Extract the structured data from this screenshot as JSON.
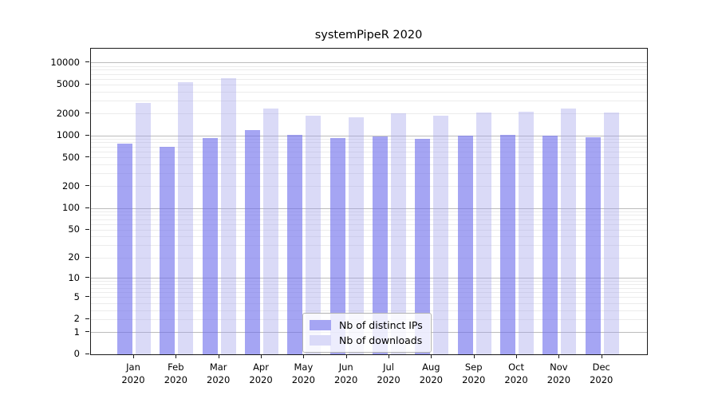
{
  "figure": {
    "background": "#ffffff"
  },
  "chart_data": {
    "type": "bar",
    "title": "systemPipeR 2020",
    "categories": [
      "Jan",
      "Feb",
      "Mar",
      "Apr",
      "May",
      "Jun",
      "Jul",
      "Aug",
      "Sep",
      "Oct",
      "Nov",
      "Dec"
    ],
    "category_sublabel": "2020",
    "series": [
      {
        "name": "Nb of distinct IPs",
        "color": "#a5a5f3",
        "fill": "rgba(110,110,235,0.62)",
        "values": [
          780,
          700,
          940,
          1210,
          1040,
          920,
          980,
          900,
          1000,
          1040,
          1000,
          960
        ]
      },
      {
        "name": "Nb of downloads",
        "color": "#dadaf8",
        "fill": "rgba(160,160,235,0.39)",
        "values": [
          2850,
          5400,
          6100,
          2360,
          1890,
          1810,
          2050,
          1890,
          2100,
          2130,
          2350,
          2090
        ]
      }
    ],
    "yscale": "log1p",
    "ylim": [
      0,
      15700
    ],
    "yticks": [
      10000,
      5000,
      2000,
      1000,
      500,
      200,
      100,
      50,
      20,
      10,
      5,
      2,
      1,
      0
    ],
    "grid": {
      "major_color": "#bcbcbc",
      "minor_color": "#ececec",
      "major_at": [
        1,
        10,
        100,
        1000,
        10000
      ],
      "minor_at": [
        2,
        3,
        4,
        5,
        6,
        7,
        8,
        9,
        20,
        30,
        40,
        50,
        60,
        70,
        80,
        90,
        200,
        300,
        400,
        500,
        600,
        700,
        800,
        900,
        2000,
        3000,
        4000,
        5000,
        6000,
        7000,
        8000,
        9000
      ]
    },
    "legend_position": "lower center"
  }
}
